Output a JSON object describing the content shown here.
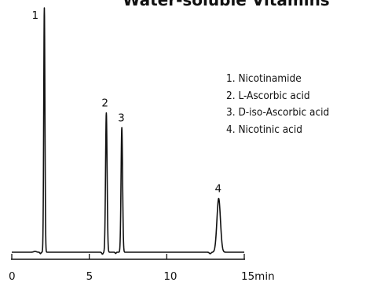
{
  "chart_data": {
    "type": "line",
    "title": "Water-soluble Vitamins",
    "xlabel": "",
    "ylabel": "",
    "x_unit": "min",
    "xlim": [
      0,
      15
    ],
    "x_ticks": [
      0,
      5,
      10,
      15
    ],
    "x_tick_labels": [
      "0",
      "5",
      "10",
      "15min"
    ],
    "peaks": [
      {
        "label": "1",
        "retention_time": 2.1,
        "height": 100
      },
      {
        "label": "2",
        "retention_time": 6.1,
        "height": 57
      },
      {
        "label": "3",
        "retention_time": 7.1,
        "height": 51
      },
      {
        "label": "4",
        "retention_time": 13.35,
        "height": 22
      }
    ],
    "legend": [
      "1. Nicotinamide",
      "2. L-Ascorbic acid",
      "3. D-iso-Ascorbic acid",
      "4. Nicotinic acid"
    ]
  }
}
